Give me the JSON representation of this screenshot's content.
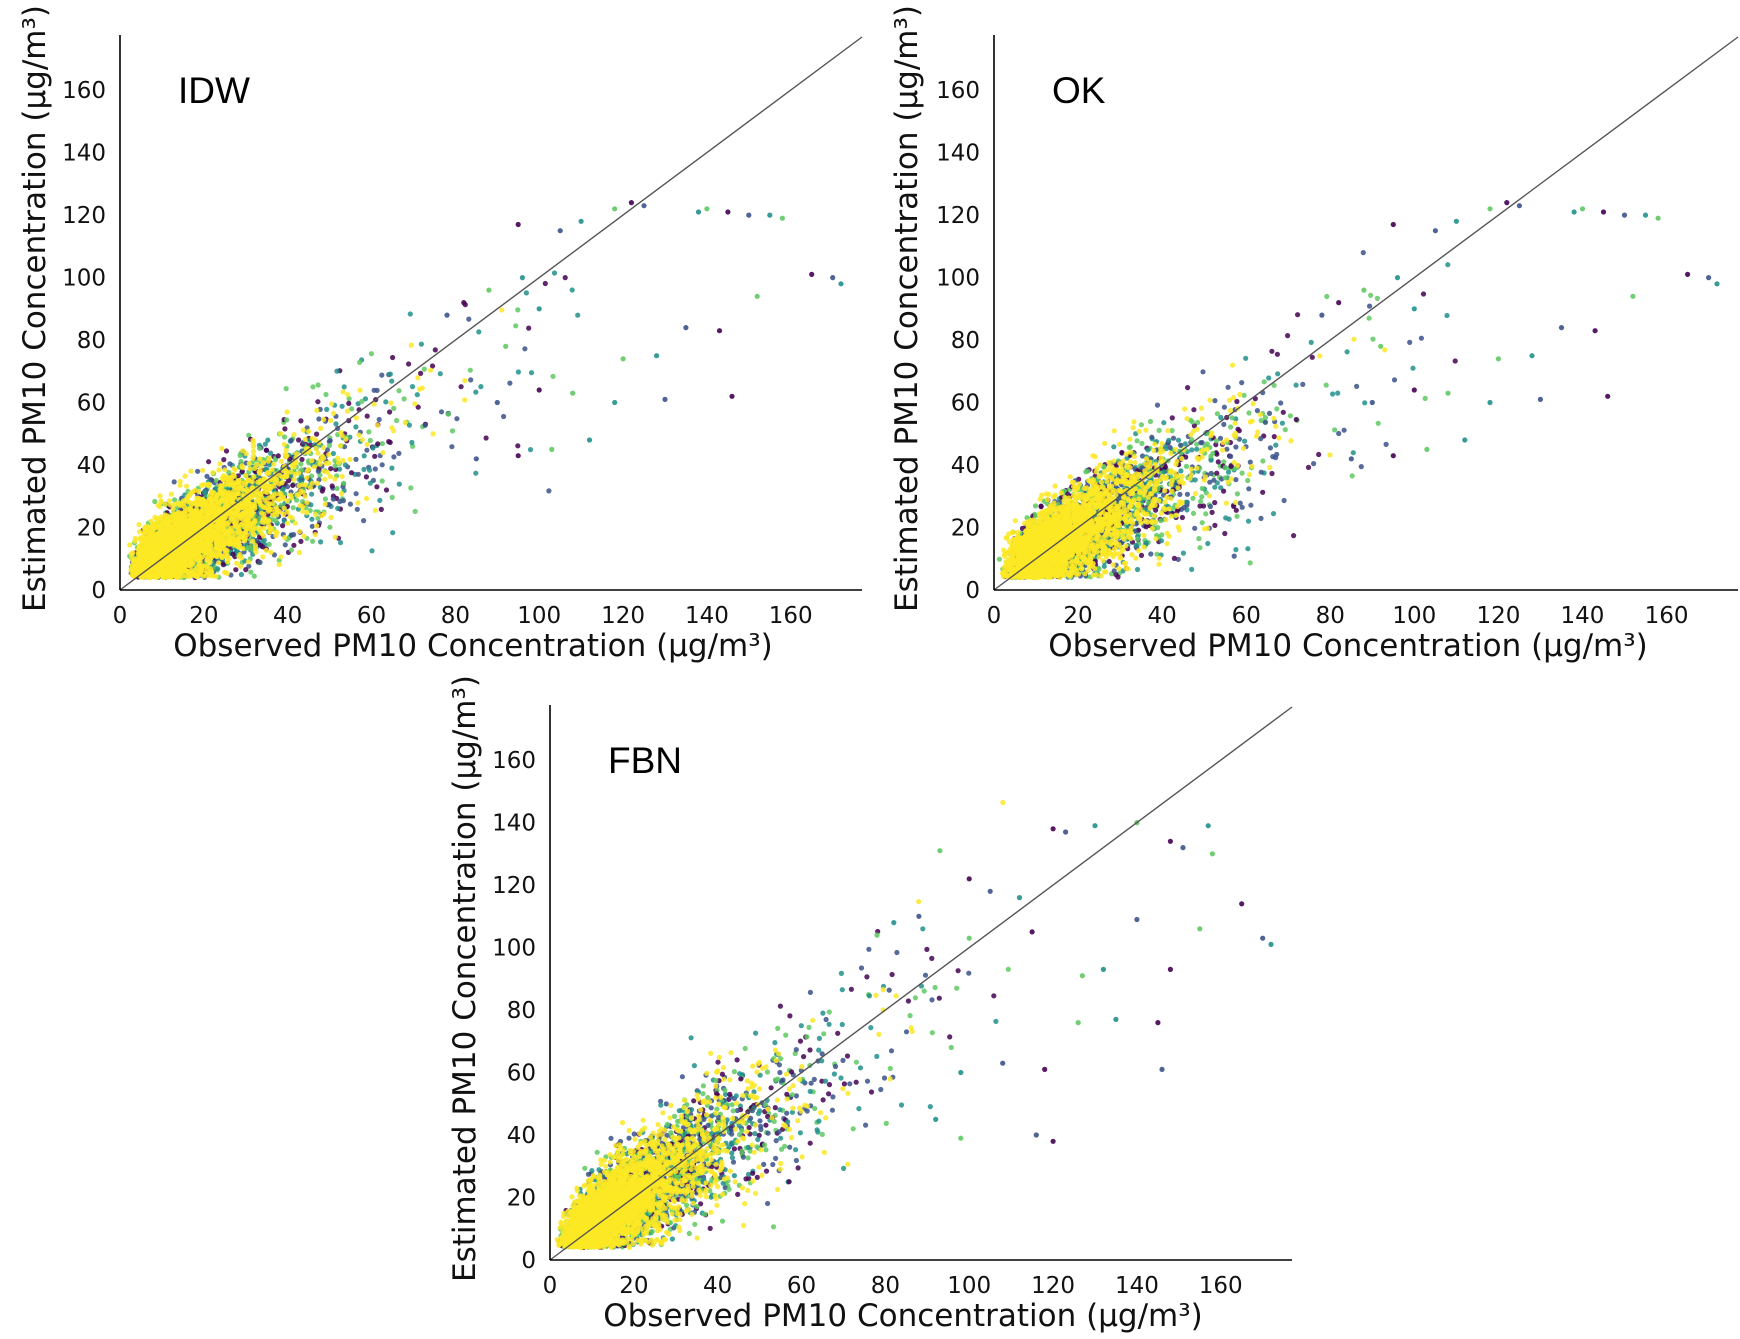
{
  "chart_data": [
    {
      "type": "scatter",
      "title": "IDW",
      "xlabel": "Observed PM10 Concentration (µg/m³)",
      "ylabel": "Estimated PM10 Concentration (µg/m³)",
      "xlim": [
        0,
        177
      ],
      "ylim": [
        0,
        177
      ],
      "xticks": [
        "0",
        "20",
        "40",
        "60",
        "80",
        "100",
        "120",
        "140",
        "160"
      ],
      "yticks": [
        "0",
        "20",
        "40",
        "60",
        "80",
        "100",
        "120",
        "140",
        "160"
      ],
      "reference_line": "y = x",
      "colormap": [
        "#440154",
        "#3b528b",
        "#21918c",
        "#5ec962",
        "#fde725"
      ],
      "cloud": {
        "slope": 0.72,
        "intercept": 4.5,
        "spread": 7.0,
        "n": 5200
      },
      "outliers": [
        [
          95,
          117
        ],
        [
          105,
          115
        ],
        [
          110,
          118
        ],
        [
          118,
          122
        ],
        [
          122,
          124
        ],
        [
          125,
          123
        ],
        [
          138,
          121
        ],
        [
          140,
          122
        ],
        [
          145,
          121
        ],
        [
          150,
          120
        ],
        [
          155,
          120
        ],
        [
          158,
          119
        ],
        [
          165,
          101
        ],
        [
          170,
          100
        ],
        [
          172,
          98
        ],
        [
          152,
          94
        ],
        [
          143,
          83
        ],
        [
          135,
          84
        ],
        [
          128,
          75
        ],
        [
          120,
          74
        ],
        [
          146,
          62
        ],
        [
          130,
          61
        ],
        [
          118,
          60
        ],
        [
          108,
          63
        ],
        [
          100,
          64
        ],
        [
          90,
          60
        ],
        [
          112,
          48
        ],
        [
          103,
          45
        ],
        [
          95,
          43
        ],
        [
          85,
          42
        ],
        [
          96,
          100
        ],
        [
          88,
          96
        ],
        [
          82,
          92
        ],
        [
          78,
          88
        ],
        [
          100,
          90
        ],
        [
          92,
          78
        ]
      ]
    },
    {
      "type": "scatter",
      "title": "OK",
      "xlabel": "Observed PM10 Concentration (µg/m³)",
      "ylabel": "Estimated PM10 Concentration (µg/m³)",
      "xlim": [
        0,
        177
      ],
      "ylim": [
        0,
        177
      ],
      "xticks": [
        "0",
        "20",
        "40",
        "60",
        "80",
        "100",
        "120",
        "140",
        "160"
      ],
      "yticks": [
        "0",
        "20",
        "40",
        "60",
        "80",
        "100",
        "120",
        "140",
        "160"
      ],
      "reference_line": "y = x",
      "colormap": [
        "#440154",
        "#3b528b",
        "#21918c",
        "#5ec962",
        "#fde725"
      ],
      "cloud": {
        "slope": 0.72,
        "intercept": 4.5,
        "spread": 7.0,
        "n": 5200
      },
      "outliers": [
        [
          95,
          117
        ],
        [
          105,
          115
        ],
        [
          110,
          118
        ],
        [
          118,
          122
        ],
        [
          122,
          124
        ],
        [
          125,
          123
        ],
        [
          138,
          121
        ],
        [
          140,
          122
        ],
        [
          145,
          121
        ],
        [
          150,
          120
        ],
        [
          155,
          120
        ],
        [
          158,
          119
        ],
        [
          165,
          101
        ],
        [
          170,
          100
        ],
        [
          172,
          98
        ],
        [
          152,
          94
        ],
        [
          143,
          83
        ],
        [
          135,
          84
        ],
        [
          128,
          75
        ],
        [
          120,
          74
        ],
        [
          146,
          62
        ],
        [
          130,
          61
        ],
        [
          118,
          60
        ],
        [
          108,
          63
        ],
        [
          100,
          64
        ],
        [
          90,
          60
        ],
        [
          112,
          48
        ],
        [
          103,
          45
        ],
        [
          95,
          43
        ],
        [
          85,
          42
        ],
        [
          96,
          100
        ],
        [
          88,
          96
        ],
        [
          82,
          92
        ],
        [
          78,
          88
        ],
        [
          100,
          90
        ],
        [
          92,
          78
        ]
      ]
    },
    {
      "type": "scatter",
      "title": "FBN",
      "xlabel": "Observed PM10 Concentration (µg/m³)",
      "ylabel": "Estimated PM10 Concentration (µg/m³)",
      "xlim": [
        0,
        177
      ],
      "ylim": [
        0,
        177
      ],
      "xticks": [
        "0",
        "20",
        "40",
        "60",
        "80",
        "100",
        "120",
        "140",
        "160"
      ],
      "yticks": [
        "0",
        "20",
        "40",
        "60",
        "80",
        "100",
        "120",
        "140",
        "160"
      ],
      "reference_line": "y = x",
      "colormap": [
        "#440154",
        "#3b528b",
        "#21918c",
        "#5ec962",
        "#fde725"
      ],
      "cloud": {
        "slope": 0.86,
        "intercept": 3.5,
        "spread": 7.5,
        "n": 5200
      },
      "outliers": [
        [
          120,
          138
        ],
        [
          123,
          137
        ],
        [
          130,
          139
        ],
        [
          140,
          140
        ],
        [
          148,
          134
        ],
        [
          151,
          132
        ],
        [
          157,
          139
        ],
        [
          158,
          130
        ],
        [
          165,
          114
        ],
        [
          170,
          103
        ],
        [
          172,
          101
        ],
        [
          155,
          106
        ],
        [
          148,
          93
        ],
        [
          140,
          109
        ],
        [
          132,
          93
        ],
        [
          127,
          91
        ],
        [
          145,
          76
        ],
        [
          146,
          61
        ],
        [
          135,
          77
        ],
        [
          126,
          76
        ],
        [
          118,
          61
        ],
        [
          108,
          63
        ],
        [
          98,
          60
        ],
        [
          93,
          131
        ],
        [
          100,
          122
        ],
        [
          105,
          118
        ],
        [
          112,
          116
        ],
        [
          100,
          103
        ],
        [
          115,
          105
        ],
        [
          88,
          110
        ],
        [
          92,
          45
        ],
        [
          98,
          39
        ],
        [
          120,
          38
        ],
        [
          116,
          40
        ],
        [
          82,
          108
        ],
        [
          78,
          104
        ]
      ]
    }
  ]
}
